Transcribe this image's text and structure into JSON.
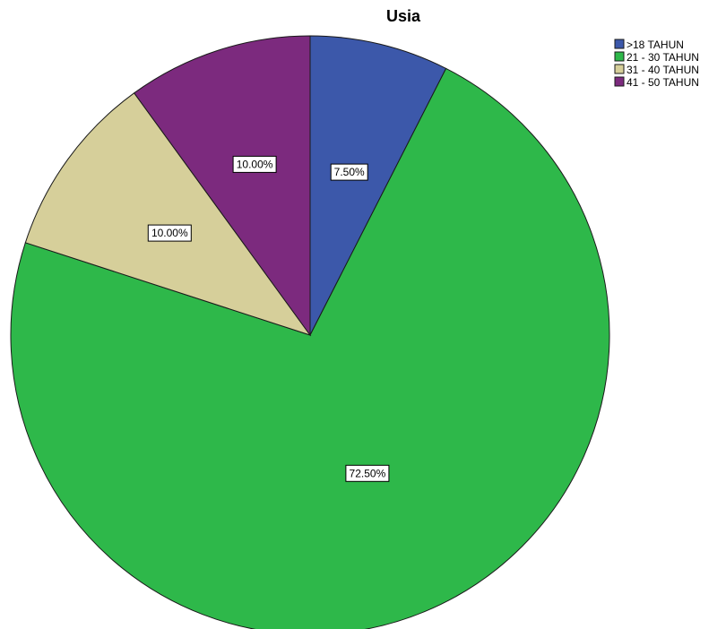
{
  "chart_data": {
    "type": "pie",
    "title": "Usia",
    "categories": [
      ">18 TAHUN",
      "21 - 30 TAHUN",
      "31 - 40 TAHUN",
      "41 - 50 TAHUN"
    ],
    "values": [
      7.5,
      72.5,
      10.0,
      10.0
    ],
    "data_labels": [
      "7.50%",
      "72.50%",
      "10.00%",
      "10.00%"
    ],
    "colors": [
      "#3c58aa",
      "#2eb84a",
      "#d6cf9a",
      "#7c2a7e"
    ],
    "legend_position": "top-right",
    "start_angle": "12 o'clock",
    "direction": "clockwise"
  }
}
